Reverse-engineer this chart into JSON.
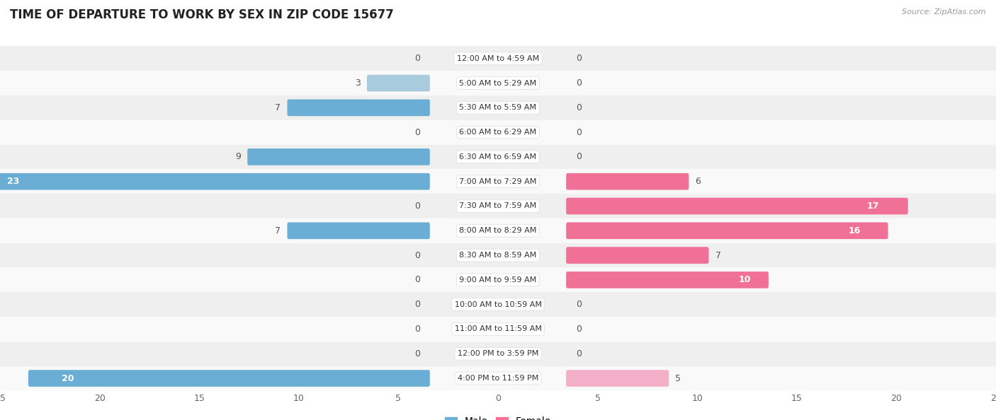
{
  "title": "TIME OF DEPARTURE TO WORK BY SEX IN ZIP CODE 15677",
  "source": "Source: ZipAtlas.com",
  "categories": [
    "12:00 AM to 4:59 AM",
    "5:00 AM to 5:29 AM",
    "5:30 AM to 5:59 AM",
    "6:00 AM to 6:29 AM",
    "6:30 AM to 6:59 AM",
    "7:00 AM to 7:29 AM",
    "7:30 AM to 7:59 AM",
    "8:00 AM to 8:29 AM",
    "8:30 AM to 8:59 AM",
    "9:00 AM to 9:59 AM",
    "10:00 AM to 10:59 AM",
    "11:00 AM to 11:59 AM",
    "12:00 PM to 3:59 PM",
    "4:00 PM to 11:59 PM"
  ],
  "male": [
    0,
    3,
    7,
    0,
    9,
    23,
    0,
    7,
    0,
    0,
    0,
    0,
    0,
    20
  ],
  "female": [
    0,
    0,
    0,
    0,
    0,
    6,
    17,
    16,
    7,
    10,
    0,
    0,
    0,
    5
  ],
  "male_color_light": "#a8ccde",
  "male_color_dark": "#6aadd5",
  "female_color_light": "#f4afc8",
  "female_color_dark": "#f07098",
  "bg_row_alt": "#efefef",
  "bg_row_norm": "#f9f9f9",
  "xlim": 25,
  "bar_height": 0.52,
  "label_fontsize": 9,
  "title_fontsize": 12,
  "category_fontsize": 8,
  "tick_fontsize": 9,
  "legend_fontsize": 10
}
